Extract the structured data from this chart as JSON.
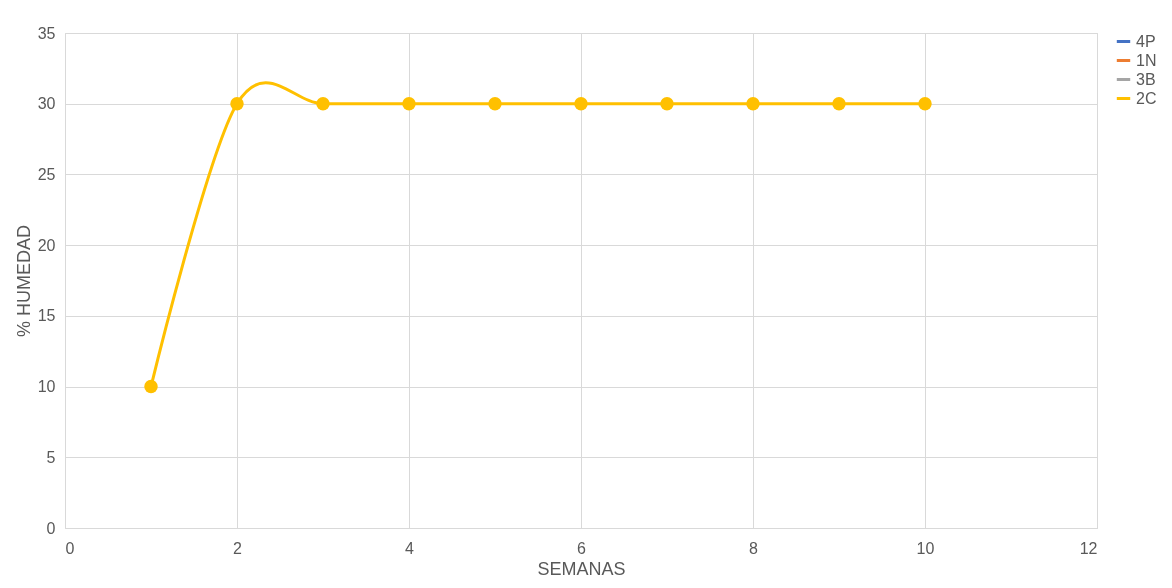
{
  "chart_data": {
    "type": "line",
    "xlabel": "SEMANAS",
    "ylabel": "% HUMEDAD",
    "x": [
      1,
      2,
      3,
      4,
      5,
      6,
      7,
      8,
      9,
      10
    ],
    "series": [
      {
        "name": "4P",
        "color": "#4472c4",
        "values": [
          null,
          null,
          null,
          null,
          null,
          null,
          null,
          null,
          null,
          null
        ]
      },
      {
        "name": "1N",
        "color": "#ed7d31",
        "values": [
          null,
          null,
          null,
          null,
          null,
          null,
          null,
          null,
          null,
          null
        ]
      },
      {
        "name": "3B",
        "color": "#a5a5a5",
        "values": [
          null,
          null,
          null,
          null,
          null,
          null,
          null,
          null,
          null,
          null
        ]
      },
      {
        "name": "2C",
        "color": "#ffc000",
        "values": [
          10,
          30,
          30,
          30,
          30,
          30,
          30,
          30,
          30,
          30
        ]
      }
    ],
    "xlim": [
      0,
      12
    ],
    "xticks": [
      0,
      2,
      4,
      6,
      8,
      10,
      12
    ],
    "ylim": [
      0,
      35
    ],
    "yticks": [
      0,
      5,
      10,
      15,
      20,
      25,
      30,
      35
    ],
    "grid": true,
    "legend": "right",
    "marker": "circle",
    "line_style": "solid"
  }
}
